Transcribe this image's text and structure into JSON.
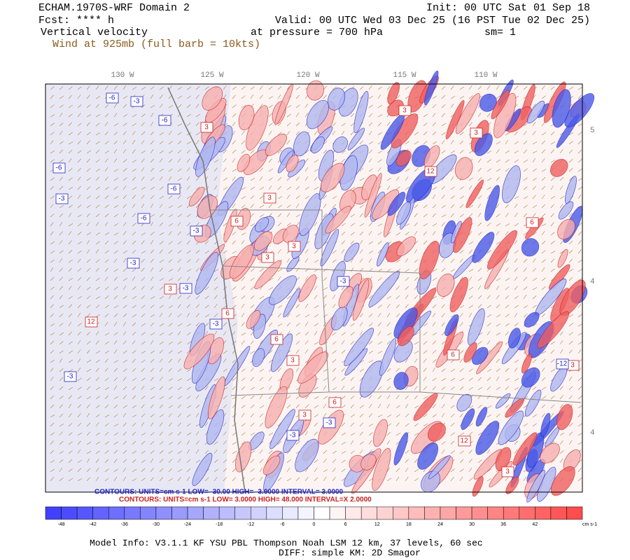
{
  "header": {
    "title": "ECHAM.1970S-WRF Domain 2",
    "init": "Init: 00 UTC Sat 01 Sep 18",
    "fcst": "Fcst: **** h",
    "valid": "Valid: 00 UTC Wed 03 Dec 25 (16 PST Tue 02 Dec 25)",
    "field": "Vertical velocity",
    "pressure": "at pressure =  700 hPa",
    "sm": "sm= 1",
    "wind": "Wind at 925mb (full barb = 10kts)"
  },
  "map": {
    "lon_labels": [
      "130 W",
      "125 W",
      "120 W",
      "115 W",
      "110 W"
    ],
    "lat_labels": [
      "5",
      "4",
      "4"
    ],
    "contour_labels": [
      "-6",
      "-3",
      "-6",
      "3",
      "-6",
      "-3",
      "-6",
      "-3",
      "-6",
      "3",
      "6",
      "-3",
      "3",
      "-3",
      "3",
      "6",
      "12",
      "-3",
      "3",
      "6",
      "3",
      "-3",
      "6",
      "12",
      "3",
      "-3",
      "6",
      "3",
      "-12",
      "12",
      "3",
      "-3",
      "3",
      "6",
      "-3",
      "3"
    ]
  },
  "legend": {
    "blue_contours": "CONTOURS:  UNITS=cm s-1  LOW= -30.00   HIGH= -3.0000   INTERVAL= 3.0000",
    "red_contours": "CONTOURS:  UNITS=cm s-1  LOW=  3.0000    HIGH=  48.000    INTERVAL=X  2.0000",
    "colorbar_labels": [
      "-48",
      "-42",
      "-36",
      "-30",
      "-24",
      "-18",
      "-12",
      "-6",
      "0",
      "6",
      "12",
      "18",
      "24",
      "30",
      "36",
      "42"
    ],
    "colorbar_unit": "cm s-1"
  },
  "footer": {
    "model_info": "Model Info: V3.1.1    KF     YSU PBL   Thompson    Noah LSM  12 km,    37 levels,    60 sec",
    "diff": "DIFF: simple KM: 2D Smagor"
  }
}
